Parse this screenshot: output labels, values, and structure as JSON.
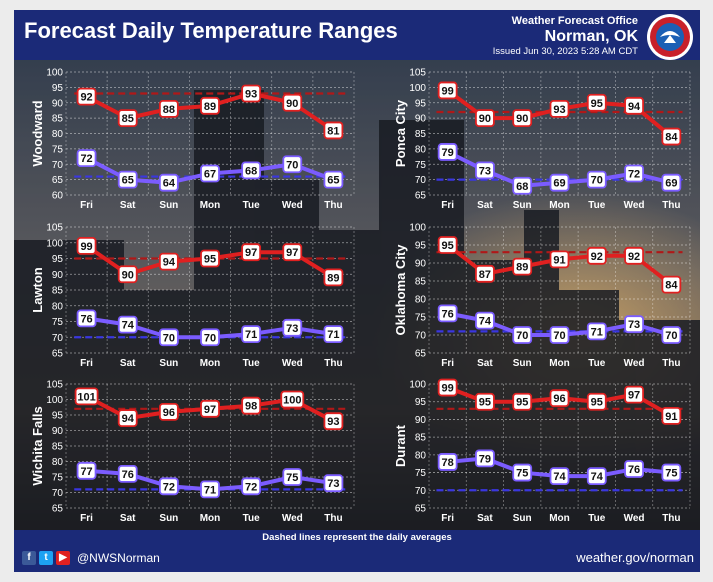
{
  "header": {
    "title": "Forecast Daily Temperature Ranges",
    "office_label": "Weather Forecast Office",
    "office_city": "Norman, OK",
    "issued": "Issued Jun 30, 2023 5:28 AM CDT"
  },
  "footer": {
    "note": "Dashed lines represent the daily averages",
    "handle": "@NWSNorman",
    "url": "weather.gov/norman"
  },
  "colors": {
    "high": "#e02020",
    "low": "#7b5cff",
    "high_avg": "#b01818",
    "low_avg": "#3a36e0"
  },
  "chart_data": [
    {
      "type": "line",
      "location": "Woodward",
      "categories": [
        "Fri",
        "Sat",
        "Sun",
        "Mon",
        "Tue",
        "Wed",
        "Thu"
      ],
      "ylim": [
        60,
        100
      ],
      "yticks": [
        60,
        65,
        70,
        75,
        80,
        85,
        90,
        95,
        100
      ],
      "series": [
        {
          "values": [
            92,
            85,
            88,
            89,
            93,
            90,
            81
          ]
        },
        {
          "values": [
            72,
            65,
            64,
            67,
            68,
            70,
            65
          ]
        }
      ],
      "averages": {
        "high": 93,
        "low": 66
      }
    },
    {
      "type": "line",
      "location": "Ponca City",
      "categories": [
        "Fri",
        "Sat",
        "Sun",
        "Mon",
        "Tue",
        "Wed",
        "Thu"
      ],
      "ylim": [
        65,
        105
      ],
      "yticks": [
        65,
        70,
        75,
        80,
        85,
        90,
        95,
        100,
        105
      ],
      "series": [
        {
          "values": [
            99,
            90,
            90,
            93,
            95,
            94,
            84
          ]
        },
        {
          "values": [
            79,
            73,
            68,
            69,
            70,
            72,
            69
          ]
        }
      ],
      "averages": {
        "high": 92,
        "low": 70
      }
    },
    {
      "type": "line",
      "location": "Lawton",
      "categories": [
        "Fri",
        "Sat",
        "Sun",
        "Mon",
        "Tue",
        "Wed",
        "Thu"
      ],
      "ylim": [
        65,
        105
      ],
      "yticks": [
        65,
        70,
        75,
        80,
        85,
        90,
        95,
        100,
        105
      ],
      "series": [
        {
          "values": [
            99,
            90,
            94,
            95,
            97,
            97,
            89
          ]
        },
        {
          "values": [
            76,
            74,
            70,
            70,
            71,
            73,
            71
          ]
        }
      ],
      "averages": {
        "high": 95,
        "low": 70
      }
    },
    {
      "type": "line",
      "location": "Oklahoma City",
      "categories": [
        "Fri",
        "Sat",
        "Sun",
        "Mon",
        "Tue",
        "Wed",
        "Thu"
      ],
      "ylim": [
        65,
        100
      ],
      "yticks": [
        65,
        70,
        75,
        80,
        85,
        90,
        95,
        100
      ],
      "series": [
        {
          "values": [
            95,
            87,
            89,
            91,
            92,
            92,
            84
          ]
        },
        {
          "values": [
            76,
            74,
            70,
            70,
            71,
            73,
            70
          ]
        }
      ],
      "averages": {
        "high": 93,
        "low": 71
      }
    },
    {
      "type": "line",
      "location": "Wichita Falls",
      "categories": [
        "Fri",
        "Sat",
        "Sun",
        "Mon",
        "Tue",
        "Wed",
        "Thu"
      ],
      "ylim": [
        65,
        105
      ],
      "yticks": [
        65,
        70,
        75,
        80,
        85,
        90,
        95,
        100,
        105
      ],
      "series": [
        {
          "values": [
            101,
            94,
            96,
            97,
            98,
            100,
            93
          ]
        },
        {
          "values": [
            77,
            76,
            72,
            71,
            72,
            75,
            73
          ]
        }
      ],
      "averages": {
        "high": 97,
        "low": 71
      }
    },
    {
      "type": "line",
      "location": "Durant",
      "categories": [
        "Fri",
        "Sat",
        "Sun",
        "Mon",
        "Tue",
        "Wed",
        "Thu"
      ],
      "ylim": [
        65,
        100
      ],
      "yticks": [
        65,
        70,
        75,
        80,
        85,
        90,
        95,
        100
      ],
      "series": [
        {
          "values": [
            99,
            95,
            95,
            96,
            95,
            97,
            91
          ]
        },
        {
          "values": [
            78,
            79,
            75,
            74,
            74,
            76,
            75
          ]
        }
      ],
      "averages": {
        "high": 93,
        "low": 70
      }
    }
  ]
}
